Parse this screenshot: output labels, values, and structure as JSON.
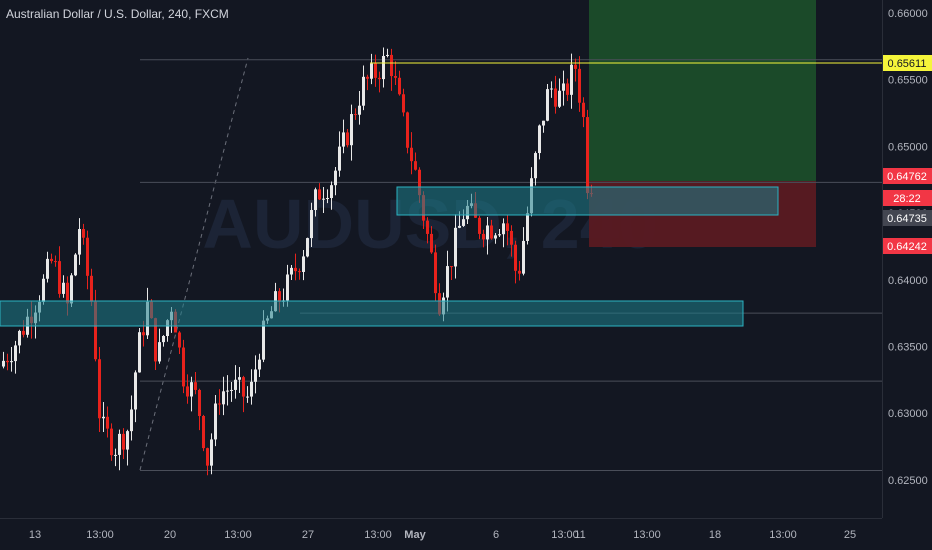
{
  "header": {
    "title": "Australian Dollar / U.S. Dollar, 240, FXCM"
  },
  "watermark": "AUDUSD, 240",
  "colors": {
    "background": "#131722",
    "up_candle": "#e8e8e8",
    "down_candle": "#e8221c",
    "axis_text": "#b2b5be",
    "resistance_line": "#f5f53a",
    "zone_fill": "#1e7f8c",
    "target_fill": "#1b4d2a",
    "stop_fill": "#5a1a22",
    "price_tag_red": "#f23645",
    "price_tag_yellow": "#f5f53a",
    "price_tag_gray": "#434651"
  },
  "chart_data": {
    "type": "candlestick",
    "y_axis_ticks": [
      "0.66000",
      "0.65500",
      "0.65000",
      "0.64500",
      "0.64000",
      "0.63500",
      "0.63000",
      "0.62500"
    ],
    "y_tick_values": [
      0.66,
      0.655,
      0.65,
      0.645,
      0.64,
      0.635,
      0.63,
      0.625
    ],
    "x_axis_ticks": [
      "13",
      "13:00",
      "20",
      "13:00",
      "27",
      "13:00",
      "May",
      "6",
      "13:00",
      "11",
      "13:00",
      "18",
      "13:00",
      "25"
    ],
    "ylim": [
      0.6207,
      0.6627
    ],
    "price_labels": [
      {
        "text": "0.65611",
        "style": "yellow"
      },
      {
        "text": "0.64762",
        "style": "red"
      },
      {
        "text": "28:22",
        "style": "red"
      },
      {
        "text": "0.64735",
        "style": "gray"
      },
      {
        "text": "0.64242",
        "style": "red"
      }
    ],
    "levels": {
      "resistance": 0.65611,
      "entry": 0.64762,
      "current": 0.64735,
      "stop": 0.64242,
      "target": 0.66
    },
    "zones": [
      {
        "name": "upper-support-zone",
        "from": 0.6464,
        "to": 0.6477
      },
      {
        "name": "lower-support-zone",
        "from": 0.6367,
        "to": 0.6383
      }
    ],
    "horizontal_lines": [
      0.6565,
      0.6473,
      0.6375,
      0.6324,
      0.6257
    ],
    "candle_range": {
      "start": 0.6335,
      "low": 0.6255,
      "high": 0.6571,
      "end": 0.6474
    }
  }
}
